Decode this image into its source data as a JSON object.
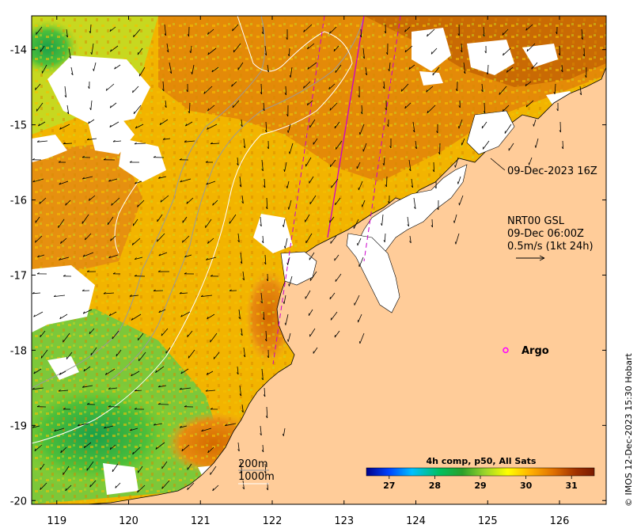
{
  "map": {
    "lon_ticks": [
      "119",
      "120",
      "121",
      "122",
      "123",
      "124",
      "125",
      "126"
    ],
    "lat_ticks": [
      "-14",
      "-15",
      "-16",
      "-17",
      "-18",
      "-19",
      "-20"
    ],
    "lon_range": [
      118.65,
      126.65
    ],
    "lat_range": [
      -20.05,
      -13.55
    ]
  },
  "annotations": {
    "swath_time": "09-Dec-2023 16Z",
    "current_title": "NRT00 GSL",
    "current_time": "09-Dec 06:00Z",
    "current_scale": "0.5m/s (1kt 24h)",
    "argo_label": "Argo",
    "contour_200": "200m",
    "contour_1000": "1000m"
  },
  "colorbar": {
    "title": "4h comp, p50, All Sats",
    "ticks": [
      "27",
      "28",
      "29",
      "30",
      "31"
    ],
    "range": [
      26.5,
      31.5
    ],
    "colors": [
      "#00008b",
      "#0044ff",
      "#00bfff",
      "#00c060",
      "#2aa02a",
      "#9ad42a",
      "#ffff00",
      "#ffb000",
      "#e07000",
      "#a03000",
      "#7a1a00"
    ]
  },
  "argo_float": {
    "lon": 125.25,
    "lat": -18.0,
    "color": "#ff00ff"
  },
  "colors": {
    "land": "#ffcc99",
    "no_data": "#ffffff",
    "track": "#cc00cc",
    "contour_200": "#999999",
    "contour_1000": "#ffffff"
  },
  "credit": "© IMOS 12-Dec-2023 15:30 Hobart"
}
